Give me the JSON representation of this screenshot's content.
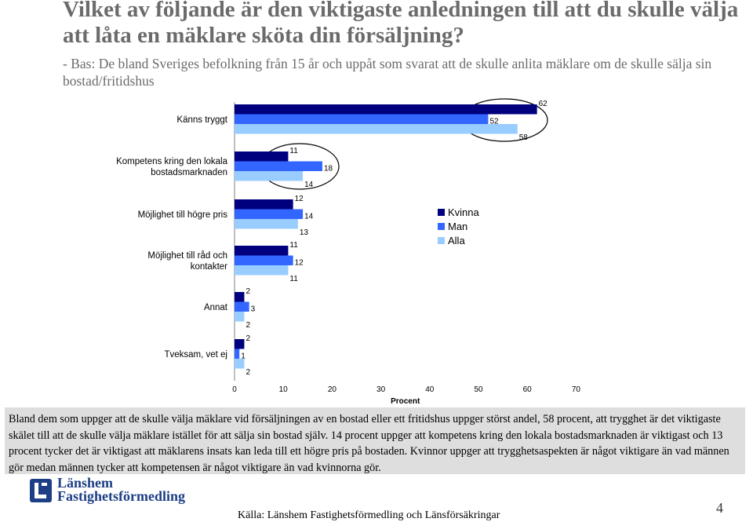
{
  "slide": {
    "title": "Vilket av följande är den viktigaste anledningen till att du skulle välja att låta en mäklare sköta din försäljning?",
    "subtitle": "- Bas: De bland Sveriges befolkning från 15 år och uppåt som svarat att de skulle anlita mäklare om de skulle sälja sin bostad/fritidshus",
    "summary": "Bland dem som uppger att de skulle välja mäklare vid försäljningen av en bostad eller ett fritidshus uppger störst andel, 58 procent, att trygghet är det viktigaste skälet till att de skulle välja mäklare istället för att sälja sin bostad själv. 14 procent uppger att kompetens kring den lokala bostadsmarknaden är viktigast och 13 procent tycker det är viktigast att mäklarens insats kan leda till ett högre pris på bostaden. Kvinnor uppger att trygghetsaspekten är något viktigare än vad männen gör medan männen tycker att kompetensen är något viktigare än vad kvinnorna gör.",
    "logo_line1": "Länshem",
    "logo_line2": "Fastighetsförmedling",
    "source": "Källa: Länshem Fastighetsförmedling och Länsförsäkringar",
    "page_number": "4"
  },
  "chart_data": {
    "type": "bar",
    "orientation": "horizontal",
    "categories": [
      [
        "Känns tryggt"
      ],
      [
        "Kompetens kring den lokala",
        "bostadsmarknaden"
      ],
      [
        "Möjlighet till högre pris"
      ],
      [
        "Möjlighet till råd och",
        "kontakter"
      ],
      [
        "Annat"
      ],
      [
        "Tveksam, vet ej"
      ]
    ],
    "series": [
      {
        "name": "Kvinna",
        "color": "#00007f",
        "values": [
          62,
          11,
          12,
          11,
          2,
          2
        ]
      },
      {
        "name": "Man",
        "color": "#3366ff",
        "values": [
          52,
          18,
          14,
          12,
          3,
          1
        ]
      },
      {
        "name": "Alla",
        "color": "#99ccff",
        "values": [
          58,
          14,
          13,
          11,
          2,
          2
        ]
      }
    ],
    "xlabel": "Procent",
    "xlim": [
      0,
      70
    ],
    "xticks": [
      0,
      10,
      20,
      30,
      40,
      50,
      60,
      70
    ],
    "legend_position": "right-middle",
    "grid": false,
    "highlight_ellipses": [
      "Känns tryggt",
      "Kompetens kring den lokala bostadsmarknaden"
    ]
  }
}
